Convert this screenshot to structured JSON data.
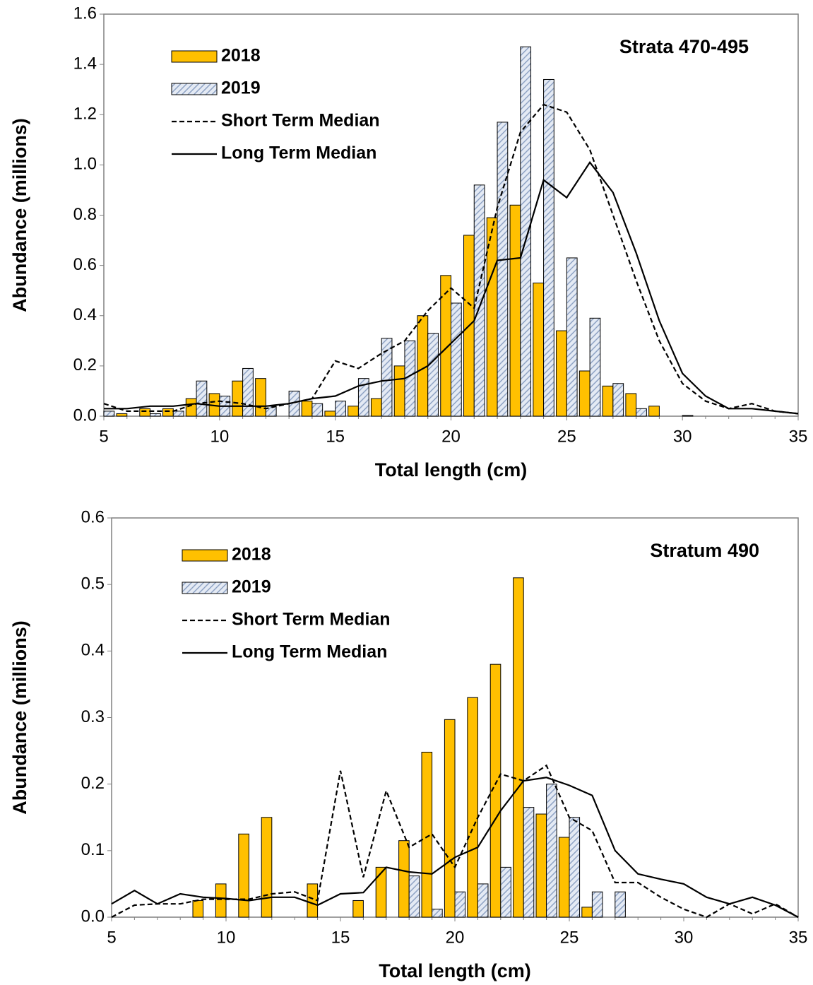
{
  "chart_data": [
    {
      "type": "bar",
      "annotation": "Strata 470-495",
      "xlabel": "Total length (cm)",
      "ylabel": "Abundance (millions)",
      "x": [
        5,
        6,
        7,
        8,
        9,
        10,
        11,
        12,
        13,
        14,
        15,
        16,
        17,
        18,
        19,
        20,
        21,
        22,
        23,
        24,
        25,
        26,
        27,
        28,
        29,
        30,
        31,
        32,
        33,
        34,
        35
      ],
      "xlim": [
        5,
        35
      ],
      "xticks": [
        5,
        10,
        15,
        20,
        25,
        30,
        35
      ],
      "ylim": [
        0,
        1.6
      ],
      "yticks": [
        {
          "value": 0,
          "label": "0.0"
        },
        0.2,
        0.4,
        0.6,
        0.8,
        {
          "value": 1,
          "label": "1.0"
        },
        1.2,
        1.4,
        1.6
      ],
      "legend": "upper left",
      "series": [
        {
          "name": "2018",
          "type": "bar",
          "color": "#ffc000",
          "values": [
            0,
            0.01,
            0.03,
            0.03,
            0.07,
            0.09,
            0.14,
            0.15,
            0,
            0.06,
            0.02,
            0.04,
            0.07,
            0.2,
            0.4,
            0.56,
            0.72,
            0.79,
            0.84,
            0.53,
            0.34,
            0.18,
            0.12,
            0.09,
            0.04,
            0,
            0,
            0,
            0,
            0,
            0
          ]
        },
        {
          "name": "2019",
          "type": "bar",
          "color": "#8fa3c4",
          "hatch": true,
          "values": [
            0.02,
            0,
            0.01,
            0.02,
            0.14,
            0.08,
            0.19,
            0.04,
            0.1,
            0.05,
            0.06,
            0.15,
            0.31,
            0.3,
            0.33,
            0.45,
            0.92,
            1.17,
            1.47,
            1.34,
            0.63,
            0.39,
            0.13,
            0.03,
            0,
            0.003,
            0,
            0,
            0,
            0,
            0
          ]
        },
        {
          "name": "Short Term Median",
          "type": "line",
          "color": "#000000",
          "dashed": true,
          "values": [
            0.05,
            0.02,
            0.02,
            0.02,
            0.05,
            0.06,
            0.05,
            0.03,
            0.05,
            0.07,
            0.22,
            0.19,
            0.25,
            0.3,
            0.42,
            0.51,
            0.43,
            0.83,
            1.13,
            1.24,
            1.21,
            1.06,
            0.8,
            0.54,
            0.3,
            0.13,
            0.06,
            0.03,
            0.05,
            0.02,
            0.01
          ]
        },
        {
          "name": "Long Term Median",
          "type": "line",
          "color": "#000000",
          "dashed": false,
          "values": [
            0.03,
            0.03,
            0.04,
            0.04,
            0.05,
            0.04,
            0.04,
            0.04,
            0.05,
            0.07,
            0.08,
            0.12,
            0.14,
            0.15,
            0.2,
            0.29,
            0.38,
            0.62,
            0.63,
            0.94,
            0.87,
            1.01,
            0.89,
            0.65,
            0.38,
            0.17,
            0.08,
            0.03,
            0.03,
            0.02,
            0.01
          ]
        }
      ]
    },
    {
      "type": "bar",
      "annotation": "Stratum 490",
      "xlabel": "Total length (cm)",
      "ylabel": "Abundance (millions)",
      "x": [
        5,
        6,
        7,
        8,
        9,
        10,
        11,
        12,
        13,
        14,
        15,
        16,
        17,
        18,
        19,
        20,
        21,
        22,
        23,
        24,
        25,
        26,
        27,
        28,
        29,
        30,
        31,
        32,
        33,
        34,
        35
      ],
      "xlim": [
        5,
        35
      ],
      "xticks": [
        5,
        10,
        15,
        20,
        25,
        30,
        35
      ],
      "ylim": [
        0,
        0.6
      ],
      "yticks": [
        {
          "value": 0,
          "label": "0.0"
        },
        0.1,
        0.2,
        0.3,
        0.4,
        0.5,
        0.6
      ],
      "legend": "upper left",
      "series": [
        {
          "name": "2018",
          "type": "bar",
          "color": "#ffc000",
          "values": [
            0,
            0,
            0,
            0,
            0.025,
            0.05,
            0.125,
            0.15,
            0,
            0.05,
            0,
            0.025,
            0.075,
            0.115,
            0.248,
            0.297,
            0.33,
            0.38,
            0.51,
            0.155,
            0.12,
            0.015,
            0,
            0,
            0,
            0,
            0,
            0,
            0,
            0,
            0
          ]
        },
        {
          "name": "2019",
          "type": "bar",
          "color": "#8fa3c4",
          "hatch": true,
          "values": [
            0,
            0,
            0,
            0,
            0,
            0,
            0,
            0,
            0,
            0,
            0,
            0,
            0,
            0.062,
            0.012,
            0.038,
            0.05,
            0.075,
            0.165,
            0.2,
            0.15,
            0.038,
            0.038,
            0,
            0,
            0,
            0,
            0,
            0,
            0,
            0
          ]
        },
        {
          "name": "Short Term Median",
          "type": "line",
          "color": "#000000",
          "dashed": true,
          "values": [
            0,
            0.018,
            0.02,
            0.02,
            0.027,
            0.027,
            0.027,
            0.035,
            0.038,
            0.025,
            0.22,
            0.06,
            0.19,
            0.105,
            0.125,
            0.075,
            0.15,
            0.215,
            0.205,
            0.228,
            0.15,
            0.13,
            0.052,
            0.052,
            0.03,
            0.012,
            0,
            0.02,
            0.005,
            0.02,
            0
          ]
        },
        {
          "name": "Long Term Median",
          "type": "line",
          "color": "#000000",
          "dashed": false,
          "values": [
            0.02,
            0.04,
            0.02,
            0.035,
            0.03,
            0.028,
            0.025,
            0.03,
            0.03,
            0.018,
            0.035,
            0.037,
            0.075,
            0.068,
            0.065,
            0.09,
            0.105,
            0.16,
            0.205,
            0.21,
            0.198,
            0.183,
            0.1,
            0.065,
            0.057,
            0.05,
            0.03,
            0.02,
            0.03,
            0.018,
            0
          ]
        }
      ]
    }
  ]
}
